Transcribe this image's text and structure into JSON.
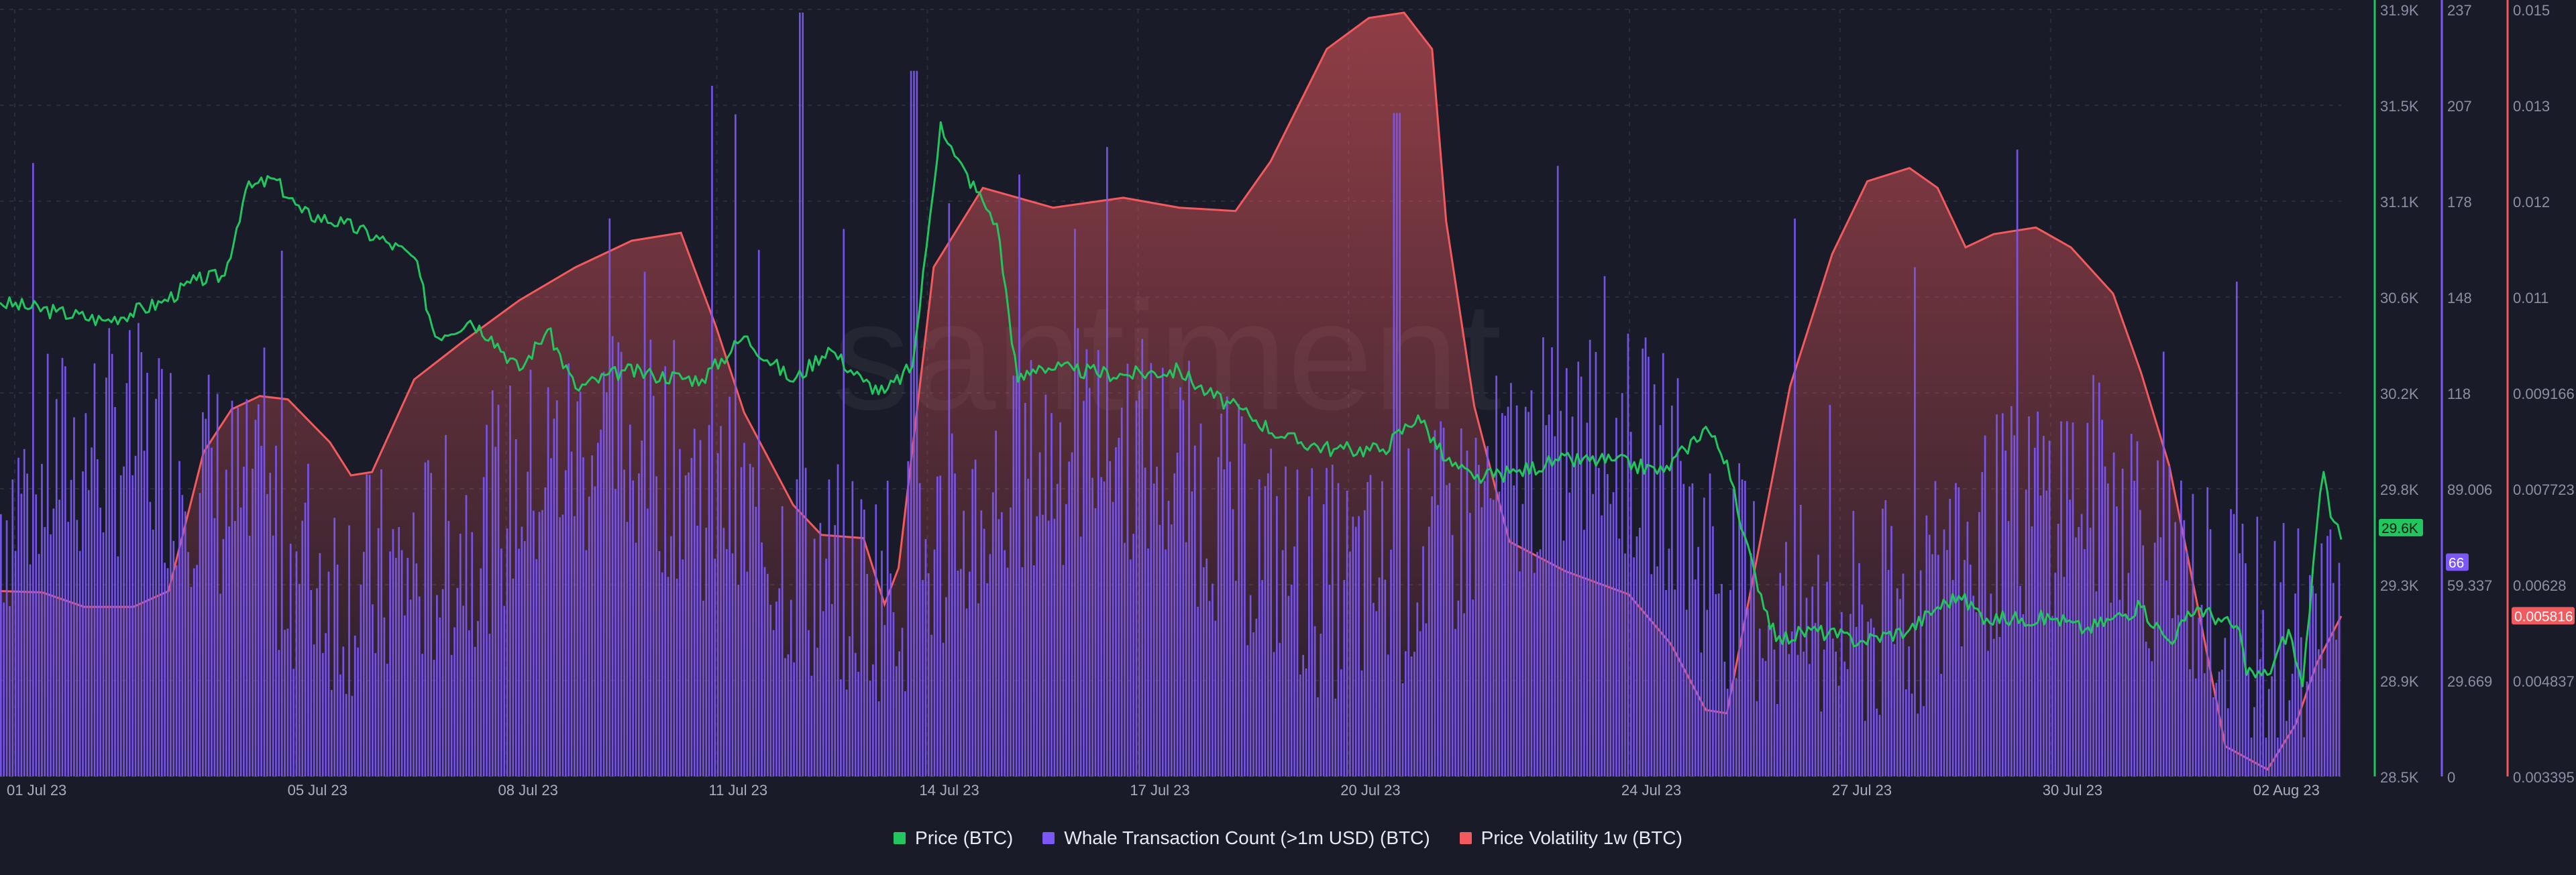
{
  "colors": {
    "background": "#191b28",
    "price": "#22c55e",
    "whale": "#7b57f5",
    "volatility": "#f25a5e",
    "axis_text": "#8b8fa3"
  },
  "watermark": "santiment",
  "legend": [
    {
      "label": "Price (BTC)",
      "color": "#22c55e"
    },
    {
      "label": "Whale Transaction Count (>1m USD) (BTC)",
      "color": "#7b57f5"
    },
    {
      "label": "Price Volatility 1w (BTC)",
      "color": "#f25a5e"
    }
  ],
  "chart_data": {
    "type": "line",
    "x_range": [
      "2023-07-01",
      "2023-08-02"
    ],
    "x_ticks": [
      "01 Jul 23",
      "05 Jul 23",
      "08 Jul 23",
      "11 Jul 23",
      "14 Jul 23",
      "17 Jul 23",
      "20 Jul 23",
      "24 Jul 23",
      "27 Jul 23",
      "30 Jul 23",
      "02 Aug 23"
    ],
    "axes": {
      "price": {
        "ticks": [
          "31.9K",
          "31.5K",
          "31.1K",
          "30.6K",
          "30.2K",
          "29.8K",
          "29.3K",
          "28.9K",
          "28.5K"
        ],
        "range": [
          28500,
          31900
        ],
        "current_label": "29.6K"
      },
      "whale": {
        "ticks": [
          "237",
          "207",
          "178",
          "148",
          "118",
          "89.006",
          "59.337",
          "29.669",
          "0"
        ],
        "range": [
          0,
          237
        ],
        "current_label": "66"
      },
      "volatility": {
        "ticks": [
          "0.015",
          "0.013",
          "0.012",
          "0.011",
          "0.009166",
          "0.007723",
          "0.00628",
          "0.004837",
          "0.003395"
        ],
        "range": [
          0.003395,
          0.015
        ],
        "current_label": "0.005816"
      }
    },
    "series": [
      {
        "name": "Price (BTC)",
        "kind": "line",
        "points": [
          [
            0,
            30600
          ],
          [
            0.8,
            30560
          ],
          [
            1.5,
            30520
          ],
          [
            2.3,
            30600
          ],
          [
            2.8,
            30700
          ],
          [
            3.2,
            30720
          ],
          [
            3.5,
            31100
          ],
          [
            3.9,
            31150
          ],
          [
            4.3,
            31000
          ],
          [
            4.9,
            30950
          ],
          [
            5.5,
            30870
          ],
          [
            5.9,
            30800
          ],
          [
            6.2,
            30450
          ],
          [
            6.7,
            30520
          ],
          [
            7.0,
            30450
          ],
          [
            7.4,
            30300
          ],
          [
            7.8,
            30480
          ],
          [
            8.2,
            30220
          ],
          [
            8.9,
            30300
          ],
          [
            9.3,
            30280
          ],
          [
            10.0,
            30260
          ],
          [
            10.6,
            30450
          ],
          [
            11.3,
            30250
          ],
          [
            11.8,
            30400
          ],
          [
            12.3,
            30250
          ],
          [
            12.6,
            30200
          ],
          [
            13.0,
            30320
          ],
          [
            13.2,
            30850
          ],
          [
            13.4,
            31400
          ],
          [
            13.6,
            31250
          ],
          [
            14.0,
            31050
          ],
          [
            14.2,
            30950
          ],
          [
            14.5,
            30250
          ],
          [
            14.8,
            30320
          ],
          [
            15.3,
            30300
          ],
          [
            16.0,
            30280
          ],
          [
            16.8,
            30300
          ],
          [
            17.2,
            30200
          ],
          [
            17.8,
            30100
          ],
          [
            18.3,
            30000
          ],
          [
            19.0,
            29950
          ],
          [
            19.7,
            29950
          ],
          [
            20.2,
            30100
          ],
          [
            20.6,
            29900
          ],
          [
            21.0,
            29820
          ],
          [
            21.6,
            29850
          ],
          [
            22.2,
            29900
          ],
          [
            23.0,
            29900
          ],
          [
            23.7,
            29850
          ],
          [
            24.0,
            29950
          ],
          [
            24.3,
            30050
          ],
          [
            24.6,
            29900
          ],
          [
            24.8,
            29600
          ],
          [
            25.0,
            29400
          ],
          [
            25.3,
            29100
          ],
          [
            25.8,
            29150
          ],
          [
            26.5,
            29100
          ],
          [
            27.2,
            29150
          ],
          [
            27.6,
            29250
          ],
          [
            27.9,
            29300
          ],
          [
            28.3,
            29200
          ],
          [
            28.8,
            29200
          ],
          [
            29.3,
            29200
          ],
          [
            29.7,
            29150
          ],
          [
            30.1,
            29200
          ],
          [
            30.5,
            29250
          ],
          [
            30.9,
            29100
          ],
          [
            31.3,
            29250
          ],
          [
            31.6,
            29200
          ],
          [
            31.9,
            29150
          ],
          [
            32.0,
            28950
          ],
          [
            32.3,
            28950
          ],
          [
            32.6,
            29150
          ],
          [
            32.8,
            28900
          ],
          [
            33.0,
            29600
          ],
          [
            33.1,
            29850
          ],
          [
            33.2,
            29650
          ],
          [
            33.35,
            29550
          ]
        ],
        "approximate": true
      },
      {
        "name": "Whale Transaction Count (>1m USD) (BTC)",
        "kind": "bar",
        "pattern": "hourly bars, mostly 40-150, spikes to ~230 near 11 Jul, 13 Jul and 20 Jul",
        "latest": 66,
        "approximate": true
      },
      {
        "name": "Price Volatility 1w (BTC)",
        "kind": "area",
        "points": [
          [
            0,
            0.0062
          ],
          [
            0.6,
            0.00618
          ],
          [
            1.2,
            0.00596
          ],
          [
            1.9,
            0.00596
          ],
          [
            2.4,
            0.0062
          ],
          [
            2.9,
            0.0083
          ],
          [
            3.3,
            0.00895
          ],
          [
            3.7,
            0.00915
          ],
          [
            4.1,
            0.0091
          ],
          [
            4.7,
            0.00845
          ],
          [
            5.0,
            0.00795
          ],
          [
            5.3,
            0.008
          ],
          [
            5.9,
            0.0094
          ],
          [
            6.6,
            0.00998
          ],
          [
            7.4,
            0.0106
          ],
          [
            8.2,
            0.0111
          ],
          [
            9.0,
            0.0115
          ],
          [
            9.7,
            0.01162
          ],
          [
            10.2,
            0.0102
          ],
          [
            10.6,
            0.0089
          ],
          [
            11.3,
            0.0075
          ],
          [
            11.7,
            0.00705
          ],
          [
            12.3,
            0.007
          ],
          [
            12.6,
            0.006
          ],
          [
            12.8,
            0.00655
          ],
          [
            13.3,
            0.0111
          ],
          [
            14.0,
            0.0123
          ],
          [
            15.0,
            0.012
          ],
          [
            16.0,
            0.01215
          ],
          [
            16.8,
            0.012
          ],
          [
            17.6,
            0.01195
          ],
          [
            18.1,
            0.0127
          ],
          [
            18.9,
            0.0144
          ],
          [
            19.5,
            0.01487
          ],
          [
            20.0,
            0.01495
          ],
          [
            20.4,
            0.0144
          ],
          [
            20.6,
            0.0118
          ],
          [
            21.0,
            0.009
          ],
          [
            21.5,
            0.00695
          ],
          [
            22.3,
            0.0065
          ],
          [
            23.2,
            0.00615
          ],
          [
            23.8,
            0.0054
          ],
          [
            24.3,
            0.0044
          ],
          [
            24.6,
            0.00435
          ],
          [
            25.0,
            0.00655
          ],
          [
            25.5,
            0.0093
          ],
          [
            26.1,
            0.0113
          ],
          [
            26.6,
            0.0124
          ],
          [
            27.2,
            0.0126
          ],
          [
            27.6,
            0.0123
          ],
          [
            28.0,
            0.0114
          ],
          [
            28.4,
            0.0116
          ],
          [
            29.0,
            0.0117
          ],
          [
            29.5,
            0.0114
          ],
          [
            30.1,
            0.0107
          ],
          [
            30.5,
            0.0095
          ],
          [
            30.9,
            0.0081
          ],
          [
            31.3,
            0.006
          ],
          [
            31.7,
            0.00385
          ],
          [
            32.3,
            0.0035
          ],
          [
            32.7,
            0.00418
          ],
          [
            33.0,
            0.0051
          ],
          [
            33.35,
            0.00582
          ]
        ],
        "approximate": true
      }
    ]
  }
}
